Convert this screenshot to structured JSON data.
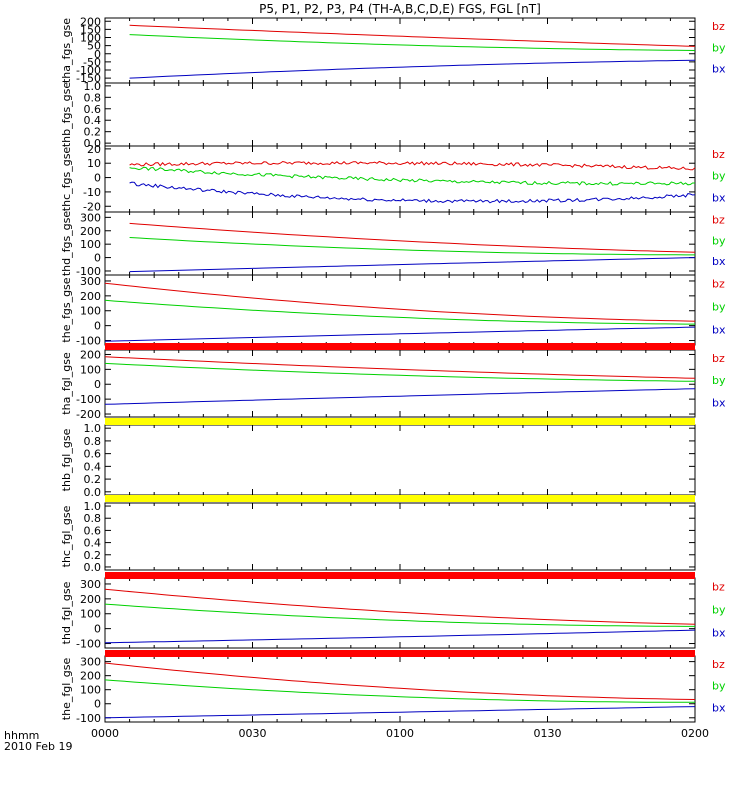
{
  "title": "P5, P1, P2, P3, P4 (TH-A,B,C,D,E) FGS, FGL [nT]",
  "colors": {
    "bz": "#e00000",
    "by": "#00d000",
    "bx": "#0000c0",
    "bar_red": "#ff0000",
    "bar_yellow": "#ffff00"
  },
  "time_axis": {
    "ticks": [
      "0000",
      "0030",
      "0100",
      "0130",
      "0200"
    ],
    "label": "hhmm",
    "date": "2010 Feb 19"
  },
  "chart_data": [
    {
      "type": "line",
      "ylabel": "tha_fgs_gse",
      "yticks": [
        "200",
        "150",
        "100",
        "50",
        "0",
        "-50",
        "-100",
        "-150"
      ],
      "ylim": [
        -180,
        220
      ],
      "x_range": [
        "00:05",
        "02:00"
      ],
      "series": [
        {
          "name": "bz",
          "values": [
            175,
            105,
            45
          ]
        },
        {
          "name": "by",
          "values": [
            118,
            52,
            20
          ]
        },
        {
          "name": "bx",
          "values": [
            -150,
            -80,
            -40
          ]
        }
      ]
    },
    {
      "type": "line",
      "ylabel": "thb_fgs_gse",
      "yticks": [
        "1.0",
        "0.8",
        "0.6",
        "0.4",
        "0.2",
        "0.0"
      ],
      "ylim": [
        -0.05,
        1.05
      ],
      "series": []
    },
    {
      "type": "line",
      "ylabel": "thc_fgs_gse",
      "yticks": [
        "20",
        "10",
        "0",
        "-10",
        "-20"
      ],
      "ylim": [
        -24,
        22
      ],
      "x_range": [
        "00:05",
        "02:00"
      ],
      "series": [
        {
          "name": "bz",
          "values": [
            9,
            10,
            6
          ]
        },
        {
          "name": "by",
          "values": [
            7,
            -2,
            -4
          ]
        },
        {
          "name": "bx",
          "values": [
            -4,
            -16,
            -12
          ]
        }
      ]
    },
    {
      "type": "line",
      "ylabel": "thd_fgs_gse",
      "yticks": [
        "300",
        "200",
        "100",
        "0",
        "-100"
      ],
      "ylim": [
        -130,
        340
      ],
      "x_range": [
        "00:05",
        "02:00"
      ],
      "series": [
        {
          "name": "bz",
          "values": [
            255,
            120,
            40
          ]
        },
        {
          "name": "by",
          "values": [
            150,
            55,
            20
          ]
        },
        {
          "name": "bx",
          "values": [
            -105,
            -50,
            0
          ]
        }
      ]
    },
    {
      "type": "line",
      "ylabel": "the_fgs_gse",
      "yticks": [
        "300",
        "200",
        "100",
        "0",
        "-100"
      ],
      "ylim": [
        -130,
        340
      ],
      "x_range": [
        "00:00",
        "02:00"
      ],
      "series": [
        {
          "name": "bz",
          "values": [
            285,
            110,
            30
          ]
        },
        {
          "name": "by",
          "values": [
            170,
            55,
            10
          ]
        },
        {
          "name": "bx",
          "values": [
            -105,
            -55,
            -10
          ]
        }
      ]
    },
    {
      "type": "line",
      "ylabel": "tha_fgl_gse",
      "yticks": [
        "200",
        "100",
        "0",
        "-100",
        "-200"
      ],
      "ylim": [
        -220,
        230
      ],
      "x_range": [
        "00:00",
        "02:00"
      ],
      "series": [
        {
          "name": "bz",
          "values": [
            185,
            100,
            40
          ]
        },
        {
          "name": "by",
          "values": [
            140,
            60,
            20
          ]
        },
        {
          "name": "bx",
          "values": [
            -135,
            -80,
            -30
          ]
        }
      ]
    },
    {
      "type": "line",
      "ylabel": "thb_fgl_gse",
      "yticks": [
        "1.0",
        "0.8",
        "0.6",
        "0.4",
        "0.2",
        "0.0"
      ],
      "ylim": [
        -0.05,
        1.05
      ],
      "series": []
    },
    {
      "type": "line",
      "ylabel": "thc_fgl_gse",
      "yticks": [
        "1.0",
        "0.8",
        "0.6",
        "0.4",
        "0.2",
        "0.0"
      ],
      "ylim": [
        -0.05,
        1.05
      ],
      "series": []
    },
    {
      "type": "line",
      "ylabel": "thd_fgl_gse",
      "yticks": [
        "300",
        "200",
        "100",
        "0",
        "-100"
      ],
      "ylim": [
        -130,
        340
      ],
      "x_range": [
        "00:00",
        "02:00"
      ],
      "series": [
        {
          "name": "bz",
          "values": [
            265,
            110,
            30
          ]
        },
        {
          "name": "by",
          "values": [
            165,
            55,
            15
          ]
        },
        {
          "name": "bx",
          "values": [
            -95,
            -55,
            -10
          ]
        }
      ]
    },
    {
      "type": "line",
      "ylabel": "the_fgl_gse",
      "yticks": [
        "300",
        "200",
        "100",
        "0",
        "-100"
      ],
      "ylim": [
        -130,
        340
      ],
      "x_range": [
        "00:00",
        "02:00"
      ],
      "series": [
        {
          "name": "bz",
          "values": [
            290,
            110,
            30
          ]
        },
        {
          "name": "by",
          "values": [
            170,
            50,
            10
          ]
        },
        {
          "name": "bx",
          "values": [
            -100,
            -60,
            -20
          ]
        }
      ]
    }
  ],
  "status_bars": [
    {
      "color": "red"
    },
    {
      "color": "yellow"
    },
    {
      "color": "yellow"
    },
    {
      "color": "red"
    },
    {
      "color": "red"
    }
  ]
}
